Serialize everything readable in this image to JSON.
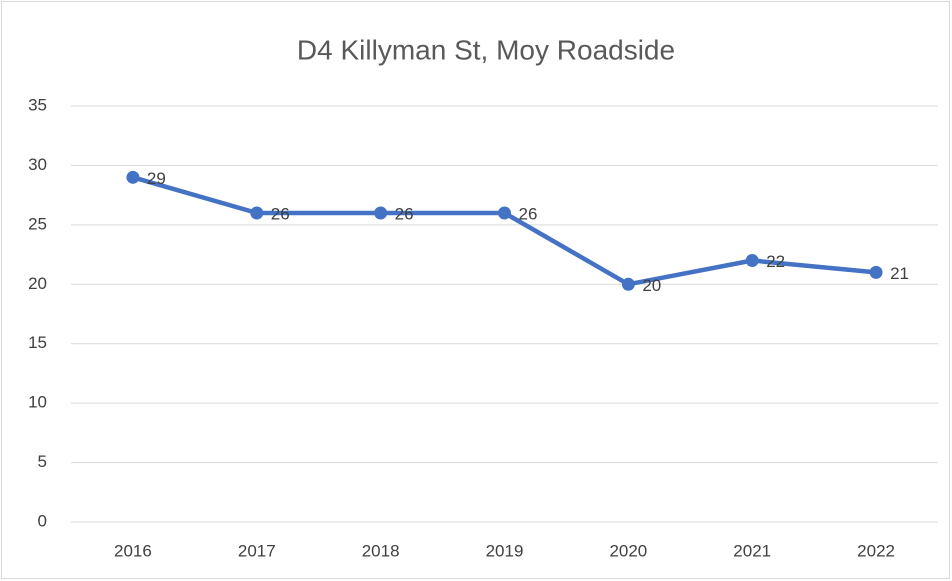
{
  "chart_data": {
    "type": "line",
    "title": "D4 Killyman St, Moy Roadside",
    "categories": [
      "2016",
      "2017",
      "2018",
      "2019",
      "2020",
      "2021",
      "2022"
    ],
    "series": [
      {
        "name": "D4 Killyman St, Moy Roadside",
        "color": "#4472c4",
        "values": [
          29,
          26,
          26,
          26,
          20,
          22,
          21
        ]
      }
    ],
    "ylim": [
      0,
      35
    ],
    "yticks": [
      0,
      5,
      10,
      15,
      20,
      25,
      30,
      35
    ],
    "grid": true
  }
}
